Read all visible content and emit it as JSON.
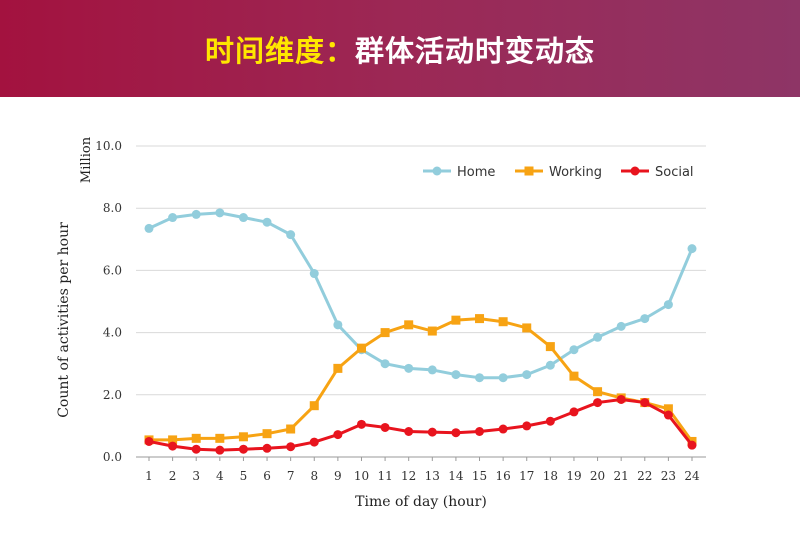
{
  "slide": {
    "title_highlight": "时间维度：",
    "title_rest": "群体活动时变动态"
  },
  "chart_data": {
    "type": "line",
    "title": "",
    "xlabel": "Time of day (hour)",
    "ylabel": "Count of activities per hour",
    "yunit": "Million",
    "x": [
      1,
      2,
      3,
      4,
      5,
      6,
      7,
      8,
      9,
      10,
      11,
      12,
      13,
      14,
      15,
      16,
      17,
      18,
      19,
      20,
      21,
      22,
      23,
      24
    ],
    "ylim": [
      0,
      10
    ],
    "yticks": [
      "0.0",
      "2.0",
      "4.0",
      "6.0",
      "8.0",
      "10.0"
    ],
    "grid": true,
    "legend_position": "top-right",
    "series": [
      {
        "name": "Home",
        "color": "#92cddc",
        "marker": "circle",
        "values": [
          7.35,
          7.7,
          7.8,
          7.85,
          7.7,
          7.55,
          7.15,
          5.9,
          4.25,
          3.45,
          3.0,
          2.85,
          2.8,
          2.65,
          2.55,
          2.55,
          2.65,
          2.95,
          3.45,
          3.85,
          4.2,
          4.45,
          4.9,
          6.7
        ]
      },
      {
        "name": "Working",
        "color": "#f7a313",
        "marker": "square",
        "values": [
          0.55,
          0.55,
          0.6,
          0.6,
          0.65,
          0.75,
          0.9,
          1.65,
          2.85,
          3.5,
          4.0,
          4.25,
          4.05,
          4.4,
          4.45,
          4.35,
          4.15,
          3.55,
          2.6,
          2.1,
          1.9,
          1.75,
          1.55,
          0.5
        ]
      },
      {
        "name": "Social",
        "color": "#e8141e",
        "marker": "circle",
        "values": [
          0.5,
          0.35,
          0.25,
          0.22,
          0.25,
          0.28,
          0.33,
          0.48,
          0.72,
          1.05,
          0.95,
          0.82,
          0.8,
          0.78,
          0.82,
          0.9,
          1.0,
          1.15,
          1.45,
          1.75,
          1.85,
          1.75,
          1.35,
          0.38
        ]
      }
    ]
  }
}
